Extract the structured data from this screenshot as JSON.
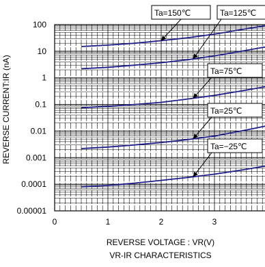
{
  "chart_data": {
    "type": "line",
    "title": "VR-IR CHARACTERISTICS",
    "xlabel": "REVERSE VOLTAGE : VR(V)",
    "ylabel": "REVERSE CURRENT:IR (nA)",
    "x_ticks": [
      "0",
      "1",
      "2",
      "3",
      "4"
    ],
    "y_ticks": [
      "100",
      "10",
      "1",
      "0.1",
      "0.01",
      "0.001",
      "0.0001",
      "0.00001"
    ],
    "y_scale": "log",
    "xlim": [
      0,
      4
    ],
    "ylim": [
      1e-05,
      100
    ],
    "grid": true,
    "series": [
      {
        "name": "Ta=150℃",
        "x": [
          0.5,
          1,
          1.5,
          2,
          2.5,
          3,
          3.5,
          4
        ],
        "y": [
          15,
          17,
          20,
          25,
          32,
          44,
          65,
          95
        ]
      },
      {
        "name": "Ta=125℃",
        "x": [
          0.5,
          1,
          1.5,
          2,
          2.5,
          3,
          3.5,
          4
        ],
        "y": [
          2.2,
          2.5,
          3.0,
          3.7,
          4.8,
          6.7,
          10,
          15
        ]
      },
      {
        "name": "Ta=75℃",
        "x": [
          0.5,
          1,
          1.5,
          2,
          2.5,
          3,
          3.5,
          4
        ],
        "y": [
          0.075,
          0.085,
          0.1,
          0.12,
          0.16,
          0.22,
          0.32,
          0.48
        ]
      },
      {
        "name": "Ta=25℃",
        "x": [
          0.5,
          1,
          1.5,
          2,
          2.5,
          3,
          3.5,
          4
        ],
        "y": [
          0.0022,
          0.0025,
          0.003,
          0.0037,
          0.0048,
          0.0065,
          0.01,
          0.016
        ]
      },
      {
        "name": "Ta=−25℃",
        "x": [
          0.5,
          1,
          1.5,
          2,
          2.5,
          3,
          3.5,
          4
        ],
        "y": [
          8e-05,
          9e-05,
          0.00011,
          0.00014,
          0.00018,
          0.00024,
          0.00034,
          0.0005
        ]
      }
    ],
    "annotations": [
      {
        "text": "Ta=150℃",
        "series": 0,
        "point_x": 2.0
      },
      {
        "text": "Ta=125℃",
        "series": 1,
        "point_x": 2.6
      },
      {
        "text": "Ta=75℃",
        "series": 2,
        "point_x": 2.6
      },
      {
        "text": "Ta=25℃",
        "series": 3,
        "point_x": 2.6
      },
      {
        "text": "Ta=−25℃",
        "series": 4,
        "point_x": 2.6
      }
    ],
    "colors": {
      "series": "#1f1f8c",
      "grid": "#000000",
      "frame": "#000000"
    }
  }
}
